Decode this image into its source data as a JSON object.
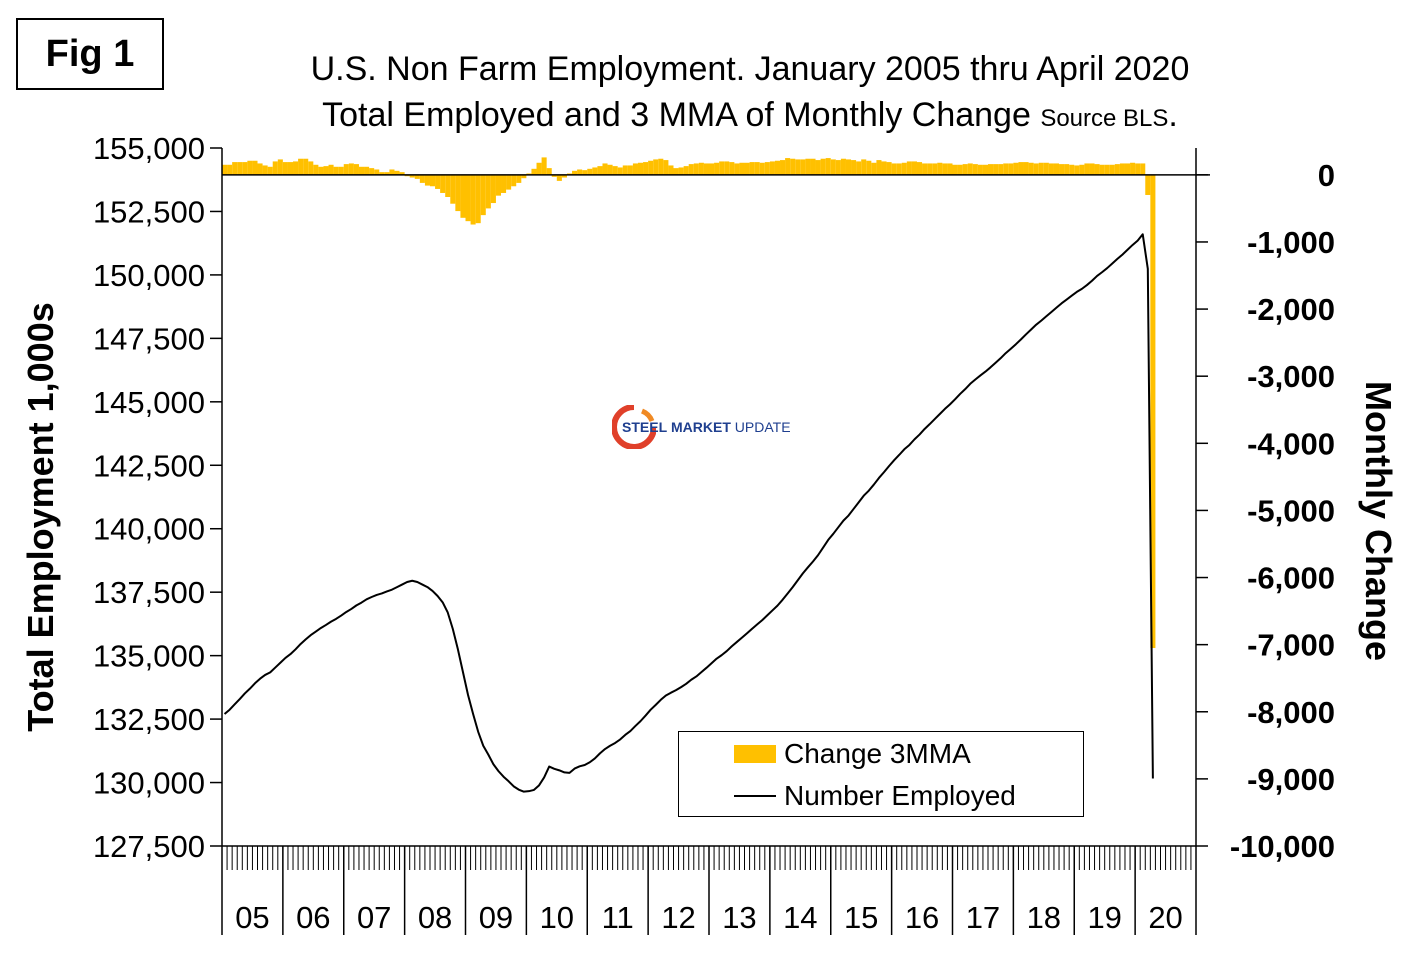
{
  "figure_label": "Fig 1",
  "title_line1": "U.S. Non Farm Employment. January 2005 thru April 2020",
  "title_line2": "Total Employed and 3 MMA of Monthly Change",
  "source_note": "Source BLS",
  "title_period": ".",
  "watermark": {
    "word1": "STEEL",
    "word2": "MARKET",
    "word3": "UPDATE"
  },
  "colors": {
    "bars": "#ffc000",
    "line": "#000000",
    "watermark_red": "#e0402a",
    "watermark_blue": "#1f3f8f"
  },
  "legend": {
    "position": "bottom-right",
    "bar_label": "Change 3MMA",
    "line_label": "Number Employed"
  },
  "chart_data": {
    "type": "bar+line",
    "xlabel": "",
    "ylabel_left": "Total Employment 1,000s",
    "ylabel_right": "Monthly Change",
    "ylim_left": [
      127500,
      155000
    ],
    "ylim_right": [
      -10000,
      400
    ],
    "yticks_left": [
      127500,
      130000,
      132500,
      135000,
      137500,
      140000,
      142500,
      145000,
      147500,
      150000,
      152500,
      155000
    ],
    "yticks_left_labels": [
      "127,500",
      "130,000",
      "132,500",
      "135,000",
      "137,500",
      "140,000",
      "142,500",
      "145,000",
      "147,500",
      "150,000",
      "152,500",
      "155,000"
    ],
    "yticks_right": [
      0,
      -1000,
      -2000,
      -3000,
      -4000,
      -5000,
      -6000,
      -7000,
      -8000,
      -9000,
      -10000
    ],
    "yticks_right_labels": [
      "0",
      "-1,000",
      "-2,000",
      "-3,000",
      "-4,000",
      "-5,000",
      "-6,000",
      "-7,000",
      "-8,000",
      "-9,000",
      "-10,000"
    ],
    "x_year_labels": [
      "05",
      "06",
      "07",
      "08",
      "09",
      "10",
      "11",
      "12",
      "13",
      "14",
      "15",
      "16",
      "17",
      "18",
      "19",
      "20"
    ],
    "grid": false,
    "months_per_year": 12,
    "series": [
      {
        "name": "Change 3MMA",
        "kind": "bar",
        "axis": "right",
        "values": [
          150,
          150,
          190,
          190,
          190,
          210,
          210,
          170,
          140,
          120,
          200,
          230,
          190,
          190,
          200,
          240,
          240,
          200,
          150,
          120,
          130,
          150,
          120,
          120,
          160,
          170,
          160,
          120,
          120,
          100,
          80,
          40,
          40,
          80,
          60,
          40,
          -20,
          -40,
          -60,
          -120,
          -160,
          -170,
          -210,
          -270,
          -330,
          -430,
          -540,
          -640,
          -690,
          -740,
          -720,
          -600,
          -500,
          -420,
          -310,
          -270,
          -220,
          -170,
          -120,
          -50,
          20,
          90,
          180,
          260,
          100,
          -30,
          -90,
          -40,
          20,
          60,
          80,
          70,
          90,
          110,
          130,
          170,
          150,
          130,
          110,
          140,
          140,
          170,
          180,
          190,
          210,
          230,
          240,
          220,
          140,
          100,
          110,
          130,
          160,
          170,
          180,
          170,
          170,
          180,
          200,
          200,
          190,
          170,
          180,
          180,
          190,
          190,
          180,
          190,
          200,
          210,
          220,
          250,
          240,
          230,
          230,
          240,
          240,
          220,
          240,
          250,
          230,
          220,
          240,
          230,
          220,
          200,
          230,
          210,
          180,
          220,
          200,
          190,
          170,
          170,
          180,
          200,
          200,
          190,
          170,
          170,
          170,
          180,
          170,
          170,
          150,
          150,
          160,
          170,
          160,
          150,
          150,
          160,
          160,
          160,
          170,
          170,
          180,
          190,
          190,
          180,
          170,
          180,
          180,
          170,
          170,
          160,
          160,
          150,
          140,
          150,
          170,
          170,
          160,
          150,
          150,
          150,
          160,
          170,
          170,
          180,
          170,
          170,
          -300,
          -7050
        ]
      },
      {
        "name": "Number Employed",
        "kind": "line",
        "axis": "left",
        "values": [
          132700,
          132870,
          133080,
          133290,
          133510,
          133700,
          133910,
          134090,
          134240,
          134340,
          134530,
          134720,
          134910,
          135060,
          135250,
          135460,
          135640,
          135810,
          135950,
          136090,
          136210,
          136340,
          136450,
          136580,
          136720,
          136840,
          136980,
          137090,
          137220,
          137310,
          137390,
          137450,
          137530,
          137600,
          137700,
          137800,
          137900,
          137950,
          137900,
          137800,
          137700,
          137550,
          137350,
          137100,
          136700,
          136050,
          135250,
          134350,
          133450,
          132700,
          132000,
          131450,
          131100,
          130720,
          130450,
          130230,
          130050,
          129850,
          129720,
          129640,
          129660,
          129710,
          129890,
          130200,
          130630,
          130540,
          130480,
          130400,
          130380,
          130550,
          130640,
          130690,
          130800,
          130950,
          131150,
          131320,
          131450,
          131560,
          131700,
          131880,
          132030,
          132230,
          132420,
          132640,
          132870,
          133060,
          133260,
          133430,
          133540,
          133640,
          133760,
          133890,
          134050,
          134180,
          134350,
          134520,
          134700,
          134880,
          135020,
          135180,
          135370,
          135540,
          135710,
          135880,
          136060,
          136230,
          136400,
          136590,
          136780,
          136970,
          137200,
          137450,
          137700,
          137970,
          138240,
          138480,
          138710,
          138960,
          139260,
          139560,
          139800,
          140060,
          140320,
          140520,
          140780,
          141040,
          141300,
          141500,
          141740,
          142000,
          142230,
          142470,
          142700,
          142910,
          143130,
          143300,
          143520,
          143710,
          143930,
          144120,
          144320,
          144520,
          144720,
          144900,
          145100,
          145310,
          145500,
          145710,
          145880,
          146040,
          146190,
          146360,
          146540,
          146720,
          146920,
          147090,
          147270,
          147460,
          147660,
          147850,
          148040,
          148200,
          148370,
          148540,
          148710,
          148880,
          149030,
          149180,
          149330,
          149450,
          149600,
          149770,
          149960,
          150110,
          150270,
          150450,
          150630,
          150800,
          150990,
          151180,
          151350,
          151600,
          150240,
          130160
        ]
      }
    ]
  }
}
